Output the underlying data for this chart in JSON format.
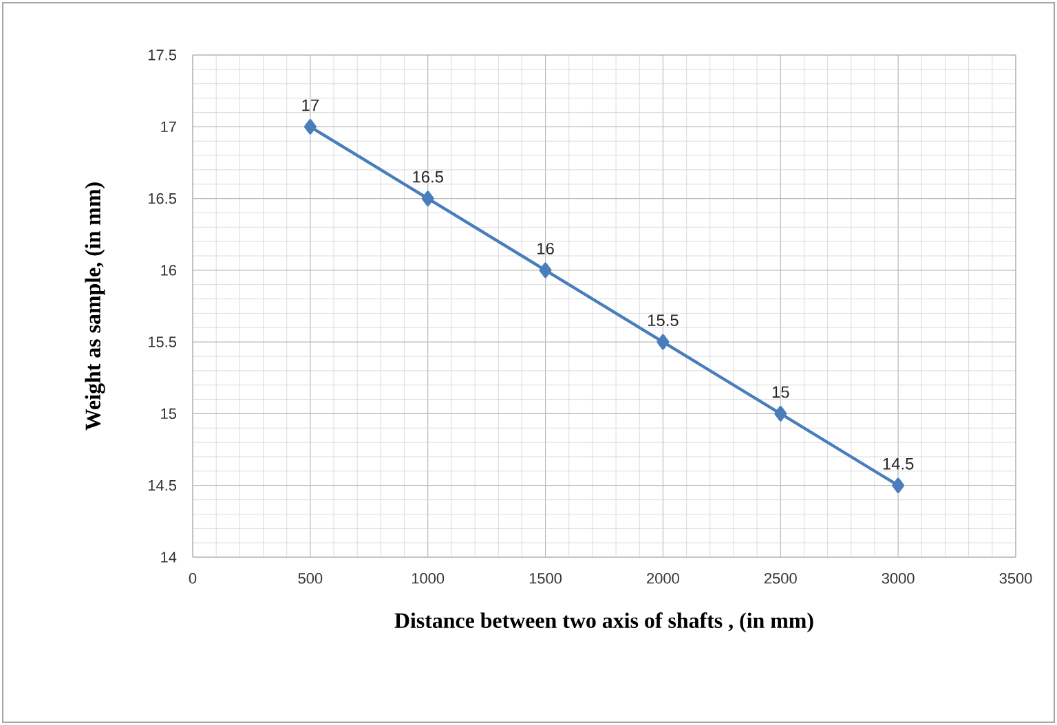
{
  "chart_data": {
    "type": "line",
    "xlabel": "Distance between two axis of shafts , (in mm)",
    "ylabel": "Weight as sample, (in mm)",
    "x": [
      500,
      1000,
      1500,
      2000,
      2500,
      3000
    ],
    "values": [
      17,
      16.5,
      16,
      15.5,
      15,
      14.5
    ],
    "color": "#4a7ebb",
    "marker": "diamond",
    "line_style": "solid",
    "data_labels": true,
    "grid": true,
    "xlim": [
      0,
      3500
    ],
    "xticks": [
      0,
      500,
      1000,
      1500,
      2000,
      2500,
      3000,
      3500
    ],
    "ylim": [
      14,
      17.5
    ],
    "yticks": [
      14,
      14.5,
      15,
      15.5,
      16,
      16.5,
      17,
      17.5
    ]
  }
}
